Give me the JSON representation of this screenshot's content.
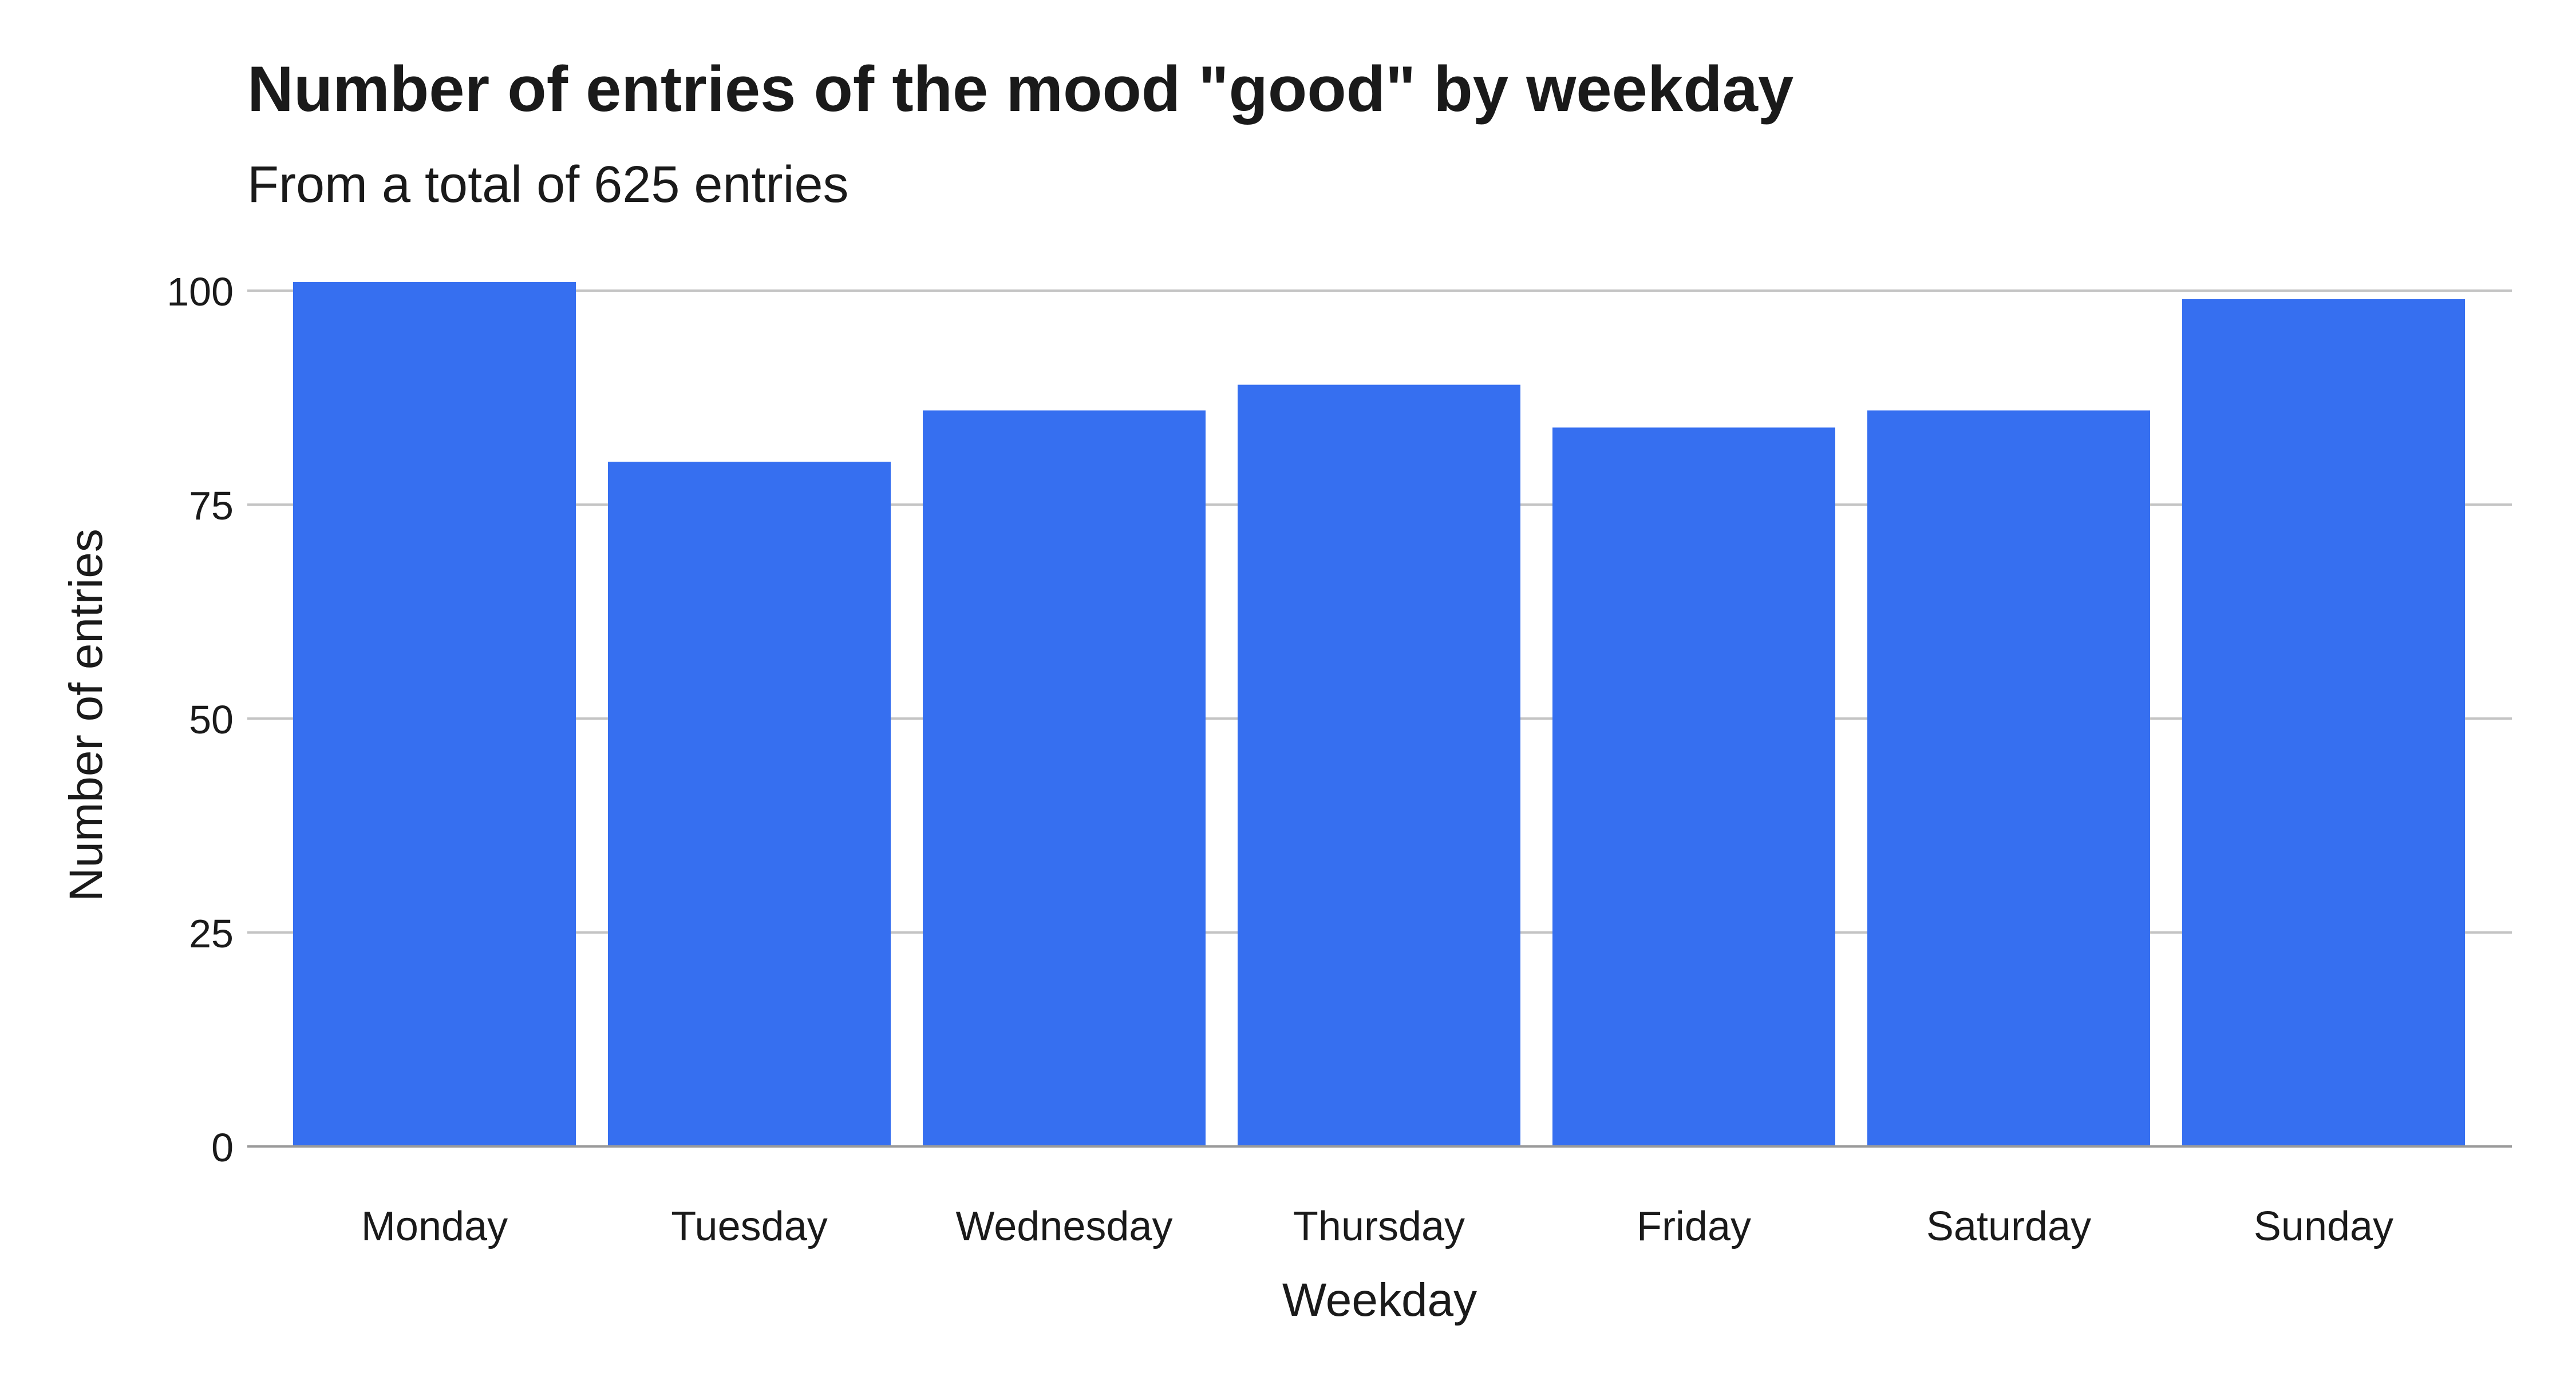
{
  "chart_data": {
    "type": "bar",
    "title": "Number of entries of the mood \"good\" by weekday",
    "subtitle": "From a total of 625 entries",
    "xlabel": "Weekday",
    "ylabel": "Number of entries",
    "categories": [
      "Monday",
      "Tuesday",
      "Wednesday",
      "Thursday",
      "Friday",
      "Saturday",
      "Sunday"
    ],
    "values": [
      101,
      80,
      86,
      89,
      84,
      86,
      99
    ],
    "ylim": [
      0,
      100
    ],
    "yticks": [
      0,
      25,
      50,
      75,
      100
    ],
    "grid": true,
    "legend": "none",
    "colors": {
      "bar": "#366FF0",
      "grid": "#C4C4C4",
      "axis": "#9A9A9A",
      "text": "#1A1A1A"
    }
  }
}
